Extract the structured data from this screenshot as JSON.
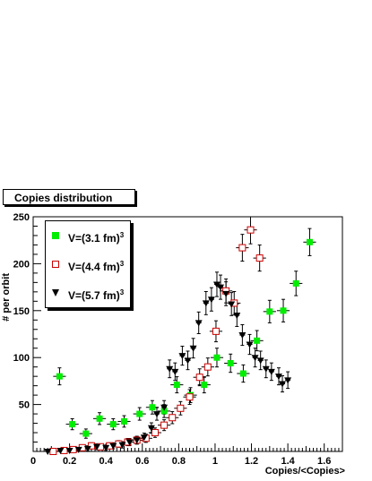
{
  "title": "Copies distribution",
  "chart_data": {
    "type": "scatter",
    "title": "Copies distribution",
    "xlabel": "Copies/<Copies>",
    "ylabel": "# per orbit",
    "xlim": [
      0,
      1.7
    ],
    "ylim": [
      0,
      250
    ],
    "x_ticks": [
      "0",
      "0.2",
      "0.4",
      "0.6",
      "0.8",
      "1",
      "1.2",
      "1.4",
      "1.6"
    ],
    "y_ticks": [
      "50",
      "100",
      "150",
      "200",
      "250"
    ],
    "legend_position": "top-left",
    "grid": false,
    "series": [
      {
        "name": "V=(3.1 fm)",
        "exponent": "3",
        "marker": "filled-square",
        "color": "#00ee00",
        "points": [
          [
            0.145,
            80
          ],
          [
            0.215,
            29
          ],
          [
            0.29,
            19
          ],
          [
            0.365,
            35
          ],
          [
            0.44,
            29
          ],
          [
            0.5,
            32
          ],
          [
            0.585,
            40
          ],
          [
            0.655,
            47
          ],
          [
            0.72,
            43
          ],
          [
            0.79,
            71
          ],
          [
            0.865,
            60
          ],
          [
            0.94,
            71
          ],
          [
            1.01,
            100
          ],
          [
            1.085,
            94
          ],
          [
            1.155,
            83
          ],
          [
            1.23,
            118
          ],
          [
            1.3,
            149
          ],
          [
            1.375,
            150
          ],
          [
            1.445,
            179
          ],
          [
            1.52,
            223
          ]
        ]
      },
      {
        "name": "V=(4.4 fm)",
        "exponent": "3",
        "marker": "open-square",
        "color": "#cc0000",
        "points": [
          [
            0.11,
            0
          ],
          [
            0.17,
            1
          ],
          [
            0.22,
            2
          ],
          [
            0.27,
            4
          ],
          [
            0.32,
            6
          ],
          [
            0.37,
            5
          ],
          [
            0.42,
            6
          ],
          [
            0.47,
            8
          ],
          [
            0.52,
            10
          ],
          [
            0.57,
            12
          ],
          [
            0.62,
            14
          ],
          [
            0.67,
            20
          ],
          [
            0.72,
            28
          ],
          [
            0.765,
            36
          ],
          [
            0.81,
            46
          ],
          [
            0.86,
            58
          ],
          [
            0.915,
            79
          ],
          [
            0.96,
            90
          ],
          [
            1.005,
            128
          ],
          [
            1.06,
            171
          ],
          [
            1.105,
            158
          ],
          [
            1.15,
            217
          ],
          [
            1.195,
            236
          ],
          [
            1.245,
            206
          ]
        ]
      },
      {
        "name": "V=(5.7 fm)",
        "exponent": "3",
        "marker": "filled-triangle-down",
        "color": "#000000",
        "points": [
          [
            0.08,
            0
          ],
          [
            0.15,
            1
          ],
          [
            0.2,
            1
          ],
          [
            0.25,
            2
          ],
          [
            0.3,
            3
          ],
          [
            0.35,
            5
          ],
          [
            0.4,
            4
          ],
          [
            0.44,
            6
          ],
          [
            0.49,
            7
          ],
          [
            0.53,
            10
          ],
          [
            0.57,
            12
          ],
          [
            0.61,
            15
          ],
          [
            0.65,
            25
          ],
          [
            0.68,
            40
          ],
          [
            0.72,
            47
          ],
          [
            0.75,
            88
          ],
          [
            0.78,
            85
          ],
          [
            0.82,
            102
          ],
          [
            0.85,
            97
          ],
          [
            0.88,
            110
          ],
          [
            0.91,
            137
          ],
          [
            0.95,
            158
          ],
          [
            0.98,
            162
          ],
          [
            1.01,
            178
          ],
          [
            1.03,
            175
          ],
          [
            1.06,
            168
          ],
          [
            1.09,
            157
          ],
          [
            1.12,
            145
          ],
          [
            1.15,
            124
          ],
          [
            1.19,
            114
          ],
          [
            1.22,
            100
          ],
          [
            1.25,
            97
          ],
          [
            1.28,
            88
          ],
          [
            1.31,
            85
          ],
          [
            1.35,
            80
          ],
          [
            1.37,
            72
          ],
          [
            1.4,
            76
          ]
        ]
      }
    ]
  }
}
